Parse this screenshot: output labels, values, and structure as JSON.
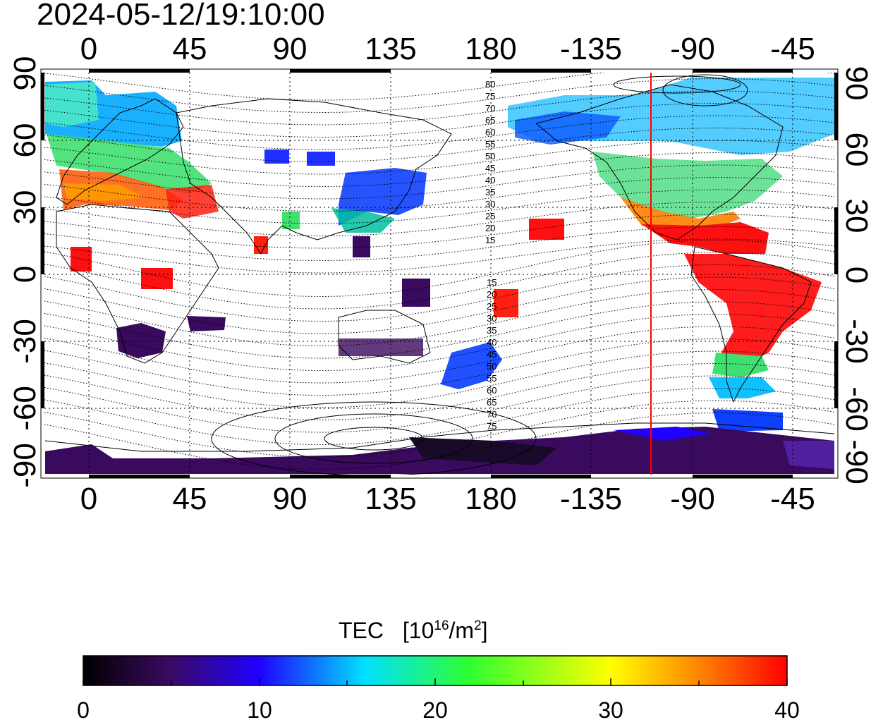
{
  "timestamp": "2024-05-12/19:10:00",
  "map": {
    "lon_ticks_top": [
      "0",
      "45",
      "90",
      "135",
      "180",
      "-135",
      "-90",
      "-45"
    ],
    "lon_ticks_bottom": [
      "0",
      "45",
      "90",
      "135",
      "180",
      "-135",
      "-90",
      "-45"
    ],
    "lat_ticks": [
      "90",
      "60",
      "30",
      "0",
      "-30",
      "-60",
      "-90"
    ],
    "mlat_labels_north": [
      "80",
      "75",
      "70",
      "65",
      "60",
      "55",
      "50",
      "45",
      "40",
      "35",
      "30",
      "25",
      "20",
      "15"
    ],
    "mlat_labels_south": [
      "15",
      "20",
      "25",
      "30",
      "35",
      "40",
      "45",
      "50",
      "55",
      "60",
      "65",
      "70",
      "75"
    ],
    "terminator_longitude": -105,
    "terminator_color": "#ff0000"
  },
  "colorbar": {
    "title": "TEC",
    "unit_base": "[10",
    "unit_exp1": "16",
    "unit_mid": "/m",
    "unit_exp2": "2",
    "unit_end": "]",
    "tick_labels": [
      "0",
      "10",
      "20",
      "30",
      "40"
    ],
    "min": 0,
    "max": 40
  },
  "palette": [
    "#000000",
    "#3a0a5e",
    "#2000ff",
    "#00e0ff",
    "#30ff30",
    "#ffff00",
    "#ff8000",
    "#ff0000"
  ]
}
